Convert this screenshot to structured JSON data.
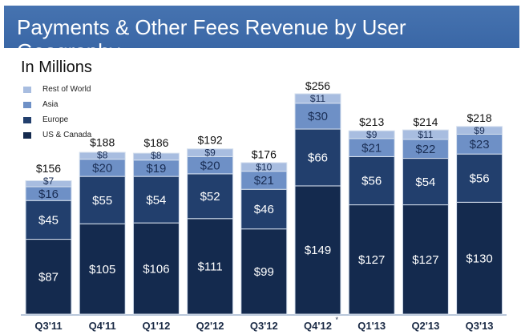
{
  "chart_data": {
    "type": "bar",
    "stacked": true,
    "title": "Payments & Other Fees Revenue by User Geography",
    "subtitle": "In Millions",
    "categories": [
      "Q3'11",
      "Q4'11",
      "Q1'12",
      "Q2'12",
      "Q3'12",
      "Q4'12",
      "Q1'13",
      "Q2'13",
      "Q3'13"
    ],
    "category_notes": {
      "Q4'12": "*"
    },
    "series": [
      {
        "name": "US & Canada",
        "color": "#142a4e",
        "values": [
          87,
          105,
          106,
          111,
          99,
          149,
          127,
          127,
          130
        ]
      },
      {
        "name": "Europe",
        "color": "#223f6d",
        "values": [
          45,
          55,
          54,
          52,
          46,
          66,
          56,
          54,
          56
        ]
      },
      {
        "name": "Asia",
        "color": "#6e90c6",
        "values": [
          16,
          20,
          19,
          20,
          21,
          30,
          21,
          22,
          23
        ]
      },
      {
        "name": "Rest of World",
        "color": "#a8bde0",
        "values": [
          7,
          8,
          8,
          9,
          10,
          11,
          9,
          11,
          9
        ]
      }
    ],
    "totals": [
      156,
      188,
      186,
      192,
      176,
      256,
      213,
      214,
      218
    ],
    "value_prefix": "$",
    "legend_position": "top-left",
    "grid": false
  }
}
